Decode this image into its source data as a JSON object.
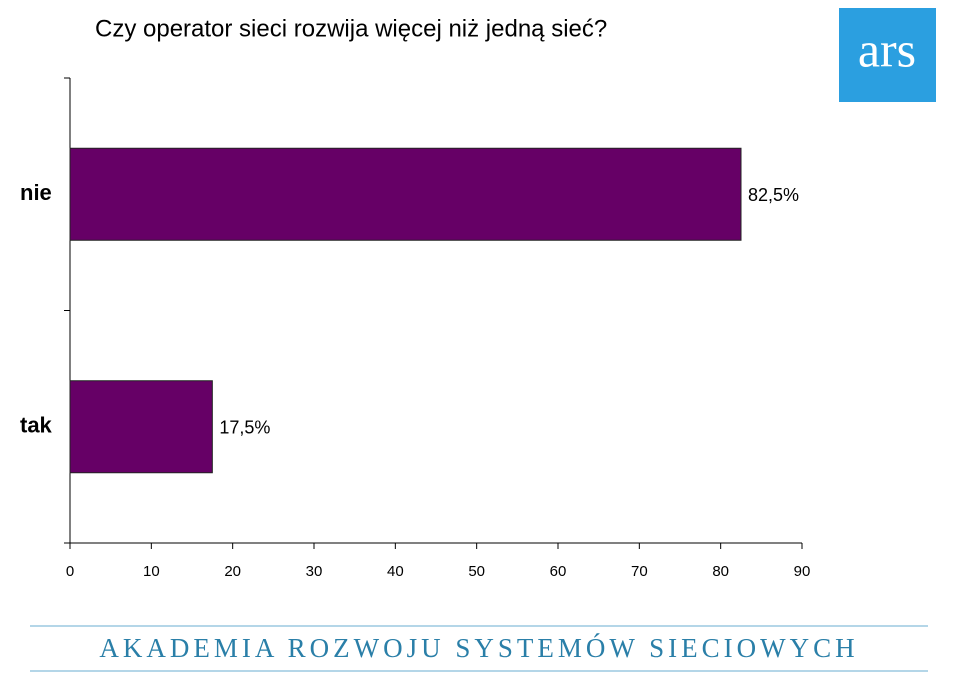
{
  "chart_data": {
    "type": "bar",
    "orientation": "horizontal",
    "title": "Czy operator sieci rozwija więcej niż jedną sieć?",
    "categories": [
      "nie",
      "tak"
    ],
    "values": [
      82.5,
      17.5
    ],
    "value_labels": [
      "82,5%",
      "17,5%"
    ],
    "color": "#660066",
    "xlim": [
      0,
      90
    ],
    "xticks": [
      0,
      10,
      20,
      30,
      40,
      50,
      60,
      70,
      80,
      90
    ],
    "grid": false
  },
  "logo": "ars",
  "footer": "AKADEMIA ROZWOJU SYSTEMÓW SIECIOWYCH"
}
